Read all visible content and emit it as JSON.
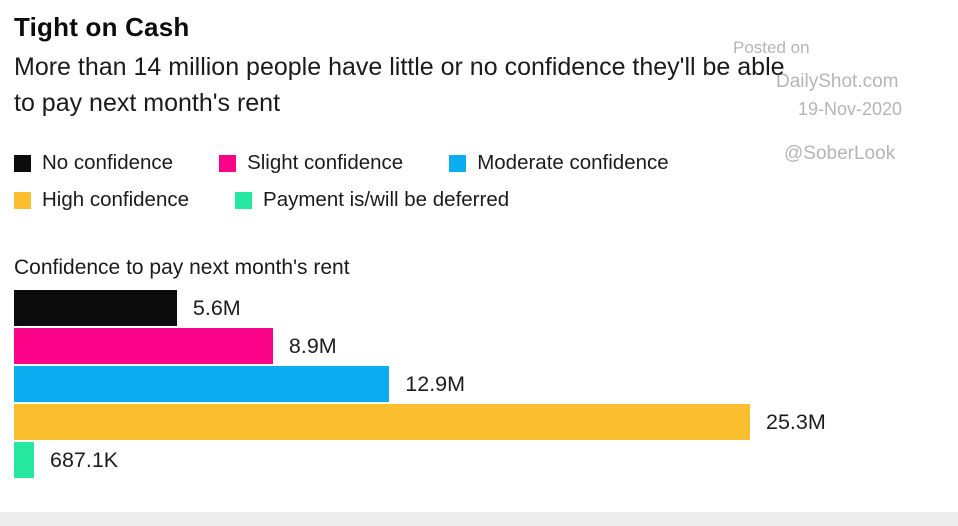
{
  "header": {
    "title": "Tight on Cash",
    "subtitle_line1": "More than 14 million people have little or no confidence they'll be able",
    "subtitle_line2": "to pay next month's rent"
  },
  "watermark": {
    "posted_on": "Posted on",
    "site": "DailyShot.com",
    "date": "19-Nov-2020",
    "handle": "@SoberLook",
    "color": "#b5b5b5"
  },
  "legend": {
    "rows": [
      [
        {
          "label": "No confidence",
          "color": "#0c0c0c"
        },
        {
          "label": "Slight confidence",
          "color": "#fb0389"
        },
        {
          "label": "Moderate confidence",
          "color": "#0bacf0"
        }
      ],
      [
        {
          "label": "High confidence",
          "color": "#fbbe2e"
        },
        {
          "label": "Payment is/will be deferred",
          "color": "#27e8a0"
        }
      ]
    ]
  },
  "chart_data": {
    "type": "bar",
    "orientation": "horizontal",
    "title": "Confidence to pay next month's rent",
    "categories": [
      "No confidence",
      "Slight confidence",
      "Moderate confidence",
      "High confidence",
      "Payment is/will be deferred"
    ],
    "values_millions": [
      5.6,
      8.9,
      12.9,
      25.3,
      0.6871
    ],
    "value_labels": [
      "5.6M",
      "8.9M",
      "12.9M",
      "25.3M",
      "687.1K"
    ],
    "colors": [
      "#0c0c0c",
      "#fb0389",
      "#0bacf0",
      "#fbbe2e",
      "#27e8a0"
    ],
    "xlim_millions": [
      0,
      26
    ],
    "grid": false,
    "legend_position": "top-left",
    "axis_labels_shown": false
  }
}
